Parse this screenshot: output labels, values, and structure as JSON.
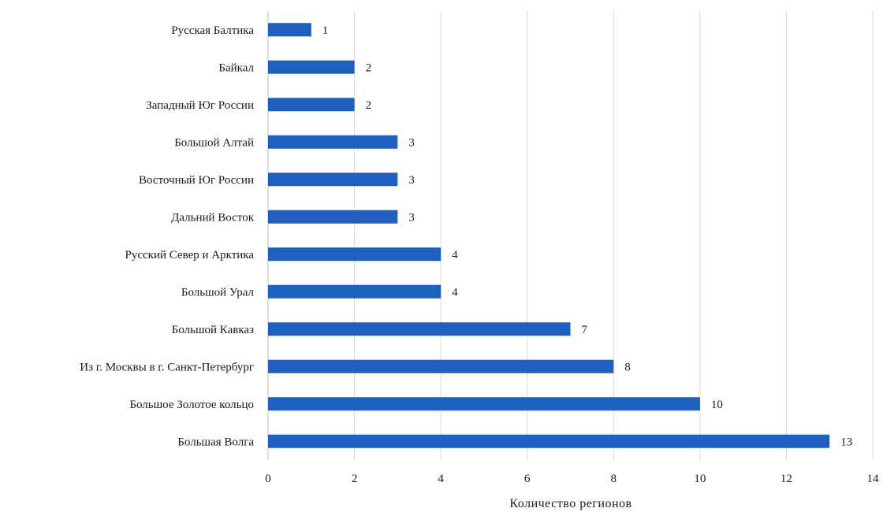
{
  "chart_data": {
    "type": "bar",
    "orientation": "horizontal",
    "categories": [
      "Русская Балтика",
      "Байкал",
      "Западный Юг России",
      "Большой Алтай",
      "Восточный Юг России",
      "Дальний Восток",
      "Русский Север и Арктика",
      "Большой Урал",
      "Большой Кавказ",
      "Из г. Москвы в г. Санкт-Петербург",
      "Большое Золотое кольцо",
      "Большая Волга"
    ],
    "values": [
      1,
      2,
      2,
      3,
      3,
      3,
      4,
      4,
      7,
      8,
      10,
      13
    ],
    "xlabel": "Количество регионов",
    "ylabel": "",
    "xlim": [
      0,
      14
    ],
    "xticks": [
      0,
      2,
      4,
      6,
      8,
      10,
      12,
      14
    ],
    "grid": "vertical",
    "data_labels": true,
    "bar_color": "#1f5fbf"
  }
}
